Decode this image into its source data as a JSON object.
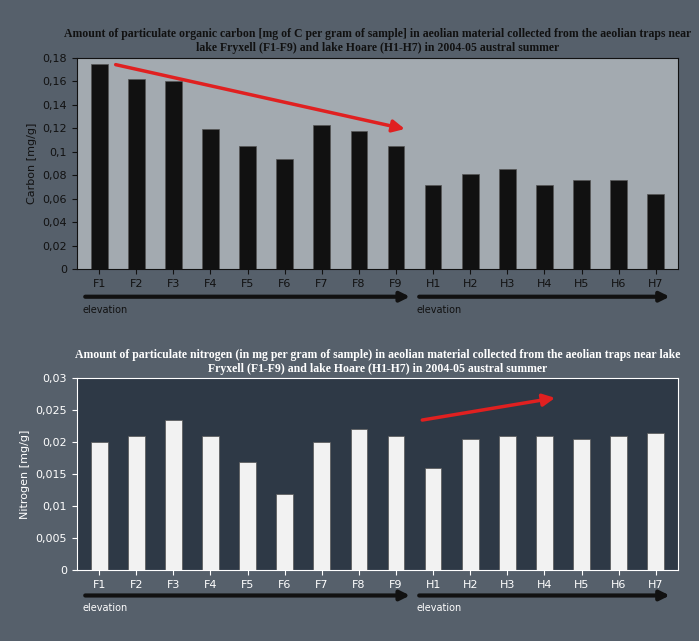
{
  "chart_data": [
    {
      "type": "bar",
      "title": "Amount of particulate organic carbon [mg of C per gram of sample] in aeolian material collected from the aeolian traps near lake Fryxell (F1-F9) and lake Hoare (H1-H7) in 2004-05 austral summer",
      "y_label": "Carbon [mg/g]",
      "categories": [
        "F1",
        "F2",
        "F3",
        "F4",
        "F5",
        "F6",
        "F7",
        "F8",
        "F9",
        "H1",
        "H2",
        "H3",
        "H4",
        "H5",
        "H6",
        "H7"
      ],
      "values": [
        0.175,
        0.162,
        0.16,
        0.119,
        0.105,
        0.094,
        0.123,
        0.118,
        0.105,
        0.072,
        0.081,
        0.085,
        0.072,
        0.076,
        0.076,
        0.064
      ],
      "color": "#111111",
      "ylim": [
        0,
        0.18
      ],
      "yticks": [
        0,
        {
          "value": 0.02,
          "label": "0,02"
        },
        {
          "value": 0.04,
          "label": "0,04"
        },
        {
          "value": 0.06,
          "label": "0,06"
        },
        {
          "value": 0.08,
          "label": "0,08"
        },
        {
          "value": 0.1,
          "label": "0,1"
        },
        {
          "value": 0.12,
          "label": "0,12"
        },
        {
          "value": 0.14,
          "label": "0,14"
        },
        {
          "value": 0.16,
          "label": "0,16"
        },
        {
          "value": 0.18,
          "label": "0,18"
        }
      ],
      "annotations": [
        "elevation",
        "elevation"
      ],
      "grid": false
    },
    {
      "type": "bar",
      "title": "Amount of particulate nitrogen (in mg per gram of sample) in aeolian material collected from the aeolian traps near lake Fryxell (F1-F9) and lake Hoare (H1-H7) in 2004-05 austral summer",
      "y_label": "Nitrogen [mg/g]",
      "categories": [
        "F1",
        "F2",
        "F3",
        "F4",
        "F5",
        "F6",
        "F7",
        "F8",
        "F9",
        "H1",
        "H2",
        "H3",
        "H4",
        "H5",
        "H6",
        "H7"
      ],
      "values": [
        0.02,
        0.021,
        0.0235,
        0.021,
        0.017,
        0.012,
        0.02,
        0.022,
        0.021,
        0.016,
        0.0205,
        0.021,
        0.021,
        0.0205,
        0.021,
        0.0215
      ],
      "color": "#f2f2f2",
      "ylim": [
        0,
        0.03
      ],
      "yticks": [
        0,
        {
          "value": 0.005,
          "label": "0,005"
        },
        {
          "value": 0.01,
          "label": "0,01"
        },
        {
          "value": 0.015,
          "label": "0,015"
        },
        {
          "value": 0.02,
          "label": "0,02"
        },
        {
          "value": 0.025,
          "label": "0,025"
        },
        {
          "value": 0.03,
          "label": "0,03"
        }
      ],
      "annotations": [
        "elevation",
        "elevation"
      ],
      "grid": false
    }
  ]
}
